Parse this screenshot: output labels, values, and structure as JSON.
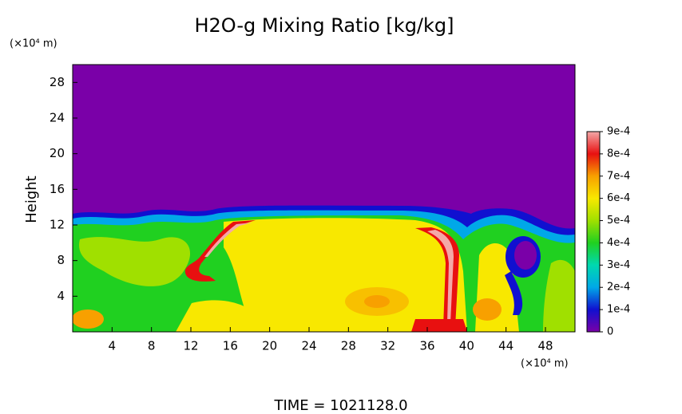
{
  "chart_data": {
    "type": "heatmap",
    "title": "H2O-g Mixing Ratio [kg/kg]",
    "y_label": "Height",
    "y_unit": "(×10⁴ m)",
    "x_unit": "(×10⁴ m)",
    "xlim": [
      0,
      51
    ],
    "xticks": [
      4,
      8,
      12,
      16,
      20,
      24,
      28,
      32,
      36,
      40,
      44,
      48
    ],
    "ylim": [
      0,
      30
    ],
    "yticks": [
      4,
      8,
      12,
      16,
      20,
      24,
      28
    ],
    "colorbar": {
      "lim": [
        0,
        0.0009
      ],
      "ticks": [
        0,
        {
          "value": 0.0001,
          "label": "1e-4"
        },
        {
          "value": 0.0002,
          "label": "2e-4"
        },
        {
          "value": 0.0003,
          "label": "3e-4"
        },
        {
          "value": 0.0004,
          "label": "4e-4"
        },
        {
          "value": 0.0005,
          "label": "5e-4"
        },
        {
          "value": 0.0006,
          "label": "6e-4"
        },
        {
          "value": 0.0007,
          "label": "7e-4"
        },
        {
          "value": 0.0008,
          "label": "8e-4"
        },
        {
          "value": 0.0009,
          "label": "9e-4"
        }
      ],
      "colors": [
        "#7a00a8",
        "#1010d0",
        "#00a8e8",
        "#00d8b0",
        "#20d020",
        "#a0e000",
        "#f8e800",
        "#f8a000",
        "#e81010",
        "#f4a8a8"
      ]
    },
    "footer": "TIME = 1021128.0"
  }
}
